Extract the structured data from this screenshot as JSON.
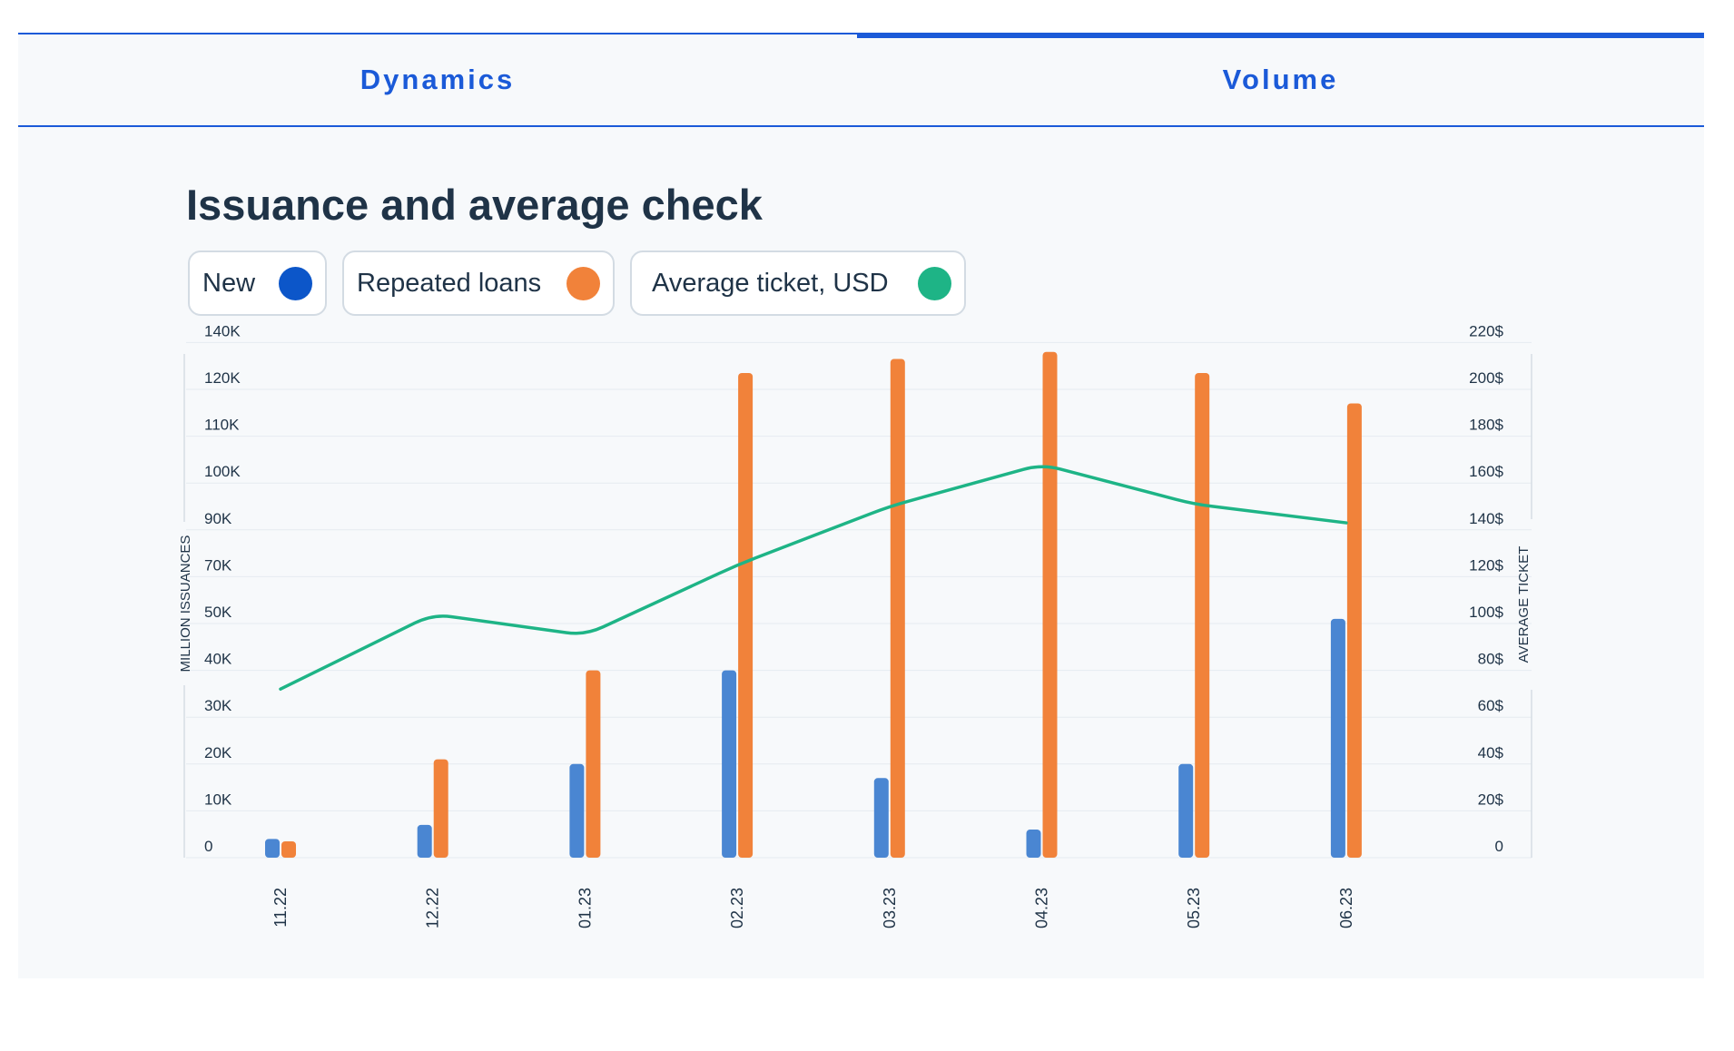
{
  "tabs": [
    {
      "label": "Dynamics",
      "active": false
    },
    {
      "label": "Volume",
      "active": true
    }
  ],
  "legend": [
    {
      "label": "New",
      "color": "#0c56c9"
    },
    {
      "label": "Repeated loans",
      "color": "#f1823a"
    },
    {
      "label": "Average ticket, USD",
      "color": "#1eb486"
    }
  ],
  "chart_data": {
    "type": "bar",
    "title": "Issuance and average check",
    "categories": [
      "11.22",
      "12.22",
      "01.23",
      "02.23",
      "03.23",
      "04.23",
      "05.23",
      "06.23"
    ],
    "y_left": {
      "label": "MILLION ISSUANCES",
      "ticks": [
        "0",
        "10K",
        "20K",
        "30K",
        "40K",
        "50K",
        "70K",
        "90K",
        "100K",
        "110K",
        "120K",
        "140K"
      ]
    },
    "y_right": {
      "label": "AVERAGE TICKET",
      "ticks": [
        "0",
        "20$",
        "40$",
        "60$",
        "80$",
        "100$",
        "120$",
        "140$",
        "160$",
        "180$",
        "200$",
        "220$"
      ]
    },
    "series": [
      {
        "name": "New",
        "type": "bar",
        "axis": "left",
        "color": "#4a86d2",
        "values": [
          4000,
          7000,
          20000,
          40000,
          17000,
          6000,
          20000,
          52000
        ]
      },
      {
        "name": "Repeated loans",
        "type": "bar",
        "axis": "left",
        "color": "#f1823a",
        "values": [
          3500,
          21000,
          40000,
          127000,
          133000,
          136000,
          127000,
          117000
        ]
      },
      {
        "name": "Average ticket, USD",
        "type": "line",
        "axis": "right",
        "color": "#1eb486",
        "values": [
          72,
          104,
          95,
          125,
          150,
          168,
          151,
          143
        ]
      }
    ],
    "grid": true,
    "legend_position": "top-left"
  }
}
